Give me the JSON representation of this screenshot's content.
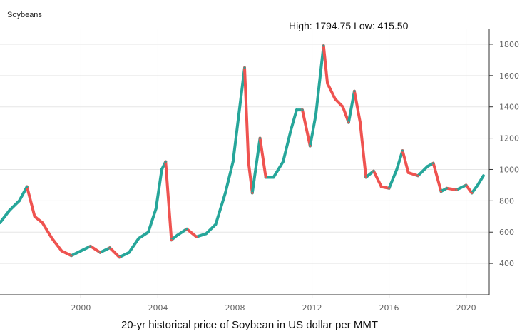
{
  "chart_data": {
    "type": "line",
    "title": "Soybeans",
    "summary": "High: 1794.75 Low: 415.50",
    "caption": "20-yr historical price of Soybean in US dollar per MMT",
    "xlabel": "",
    "ylabel": "",
    "xlim": [
      1995.8,
      2021.2
    ],
    "ylim": [
      200,
      1900
    ],
    "x_ticks": [
      2000,
      2004,
      2008,
      2012,
      2016,
      2020
    ],
    "y_ticks": [
      400,
      600,
      800,
      1000,
      1200,
      1400,
      1600,
      1800
    ],
    "grid": true,
    "y_axis_position": "right",
    "up_color": "#26a69a",
    "down_color": "#ef5350",
    "series": [
      {
        "x": [
          1995.8,
          1996.3,
          1996.8,
          1997.2,
          1997.6,
          1998.0,
          1998.5,
          1999.0,
          1999.5,
          2000.0,
          2000.5,
          2001.0,
          2001.5,
          2002.0,
          2002.5,
          2003.0,
          2003.5,
          2003.9,
          2004.2,
          2004.4,
          2004.7,
          2005.0,
          2005.5,
          2006.0,
          2006.5,
          2007.0,
          2007.5,
          2007.9,
          2008.2,
          2008.5,
          2008.7,
          2008.9,
          2009.3,
          2009.6,
          2010.0,
          2010.5,
          2010.9,
          2011.2,
          2011.5,
          2011.9,
          2012.2,
          2012.6,
          2012.8,
          2013.2,
          2013.6,
          2013.9,
          2014.2,
          2014.5,
          2014.8,
          2015.2,
          2015.6,
          2016.0,
          2016.4,
          2016.7,
          2017.0,
          2017.5,
          2018.0,
          2018.3,
          2018.7,
          2019.0,
          2019.5,
          2020.0,
          2020.3,
          2020.6,
          2020.9
        ],
        "y": [
          660,
          740,
          800,
          890,
          700,
          660,
          560,
          480,
          450,
          480,
          510,
          470,
          500,
          440,
          470,
          560,
          600,
          750,
          1000,
          1050,
          550,
          580,
          620,
          570,
          590,
          650,
          850,
          1050,
          1350,
          1650,
          1050,
          850,
          1200,
          950,
          950,
          1050,
          1250,
          1380,
          1380,
          1150,
          1350,
          1790,
          1550,
          1450,
          1400,
          1300,
          1500,
          1300,
          950,
          990,
          890,
          880,
          1000,
          1120,
          980,
          960,
          1020,
          1040,
          860,
          880,
          870,
          900,
          850,
          900,
          960
        ]
      }
    ]
  }
}
